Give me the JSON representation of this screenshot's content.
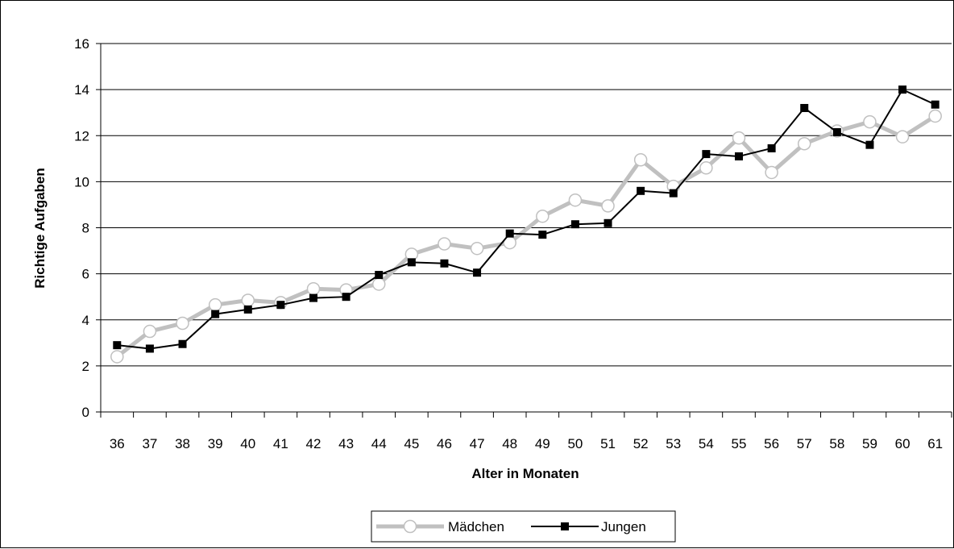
{
  "chart_data": {
    "type": "line",
    "title": "",
    "xlabel": "Alter in Monaten",
    "ylabel": "Richtige Aufgaben",
    "ylim": [
      0,
      16
    ],
    "yticks": [
      "0",
      "2",
      "4",
      "6",
      "8",
      "10",
      "12",
      "14",
      "16"
    ],
    "categories": [
      "36",
      "37",
      "38",
      "39",
      "40",
      "41",
      "42",
      "43",
      "44",
      "45",
      "46",
      "47",
      "48",
      "49",
      "50",
      "51",
      "52",
      "53",
      "54",
      "55",
      "56",
      "57",
      "58",
      "59",
      "60",
      "61"
    ],
    "grid": "horizontal",
    "legend": "bottom",
    "series": [
      {
        "name": "Mädchen",
        "color": "#c0c0c0",
        "marker": "circle-open",
        "values": [
          2.4,
          3.5,
          3.85,
          4.65,
          4.85,
          4.75,
          5.35,
          5.3,
          5.55,
          6.85,
          7.3,
          7.1,
          7.35,
          8.5,
          9.2,
          8.95,
          10.95,
          9.8,
          10.6,
          11.9,
          10.4,
          11.65,
          12.2,
          12.6,
          11.95,
          12.85
        ]
      },
      {
        "name": "Jungen",
        "color": "#000000",
        "marker": "square",
        "values": [
          2.9,
          2.75,
          2.95,
          4.25,
          4.45,
          4.65,
          4.95,
          5.0,
          5.95,
          6.5,
          6.45,
          6.05,
          7.75,
          7.7,
          8.15,
          8.2,
          9.6,
          9.5,
          11.2,
          11.1,
          11.45,
          13.2,
          12.15,
          11.6,
          14.0,
          13.35
        ]
      }
    ]
  }
}
